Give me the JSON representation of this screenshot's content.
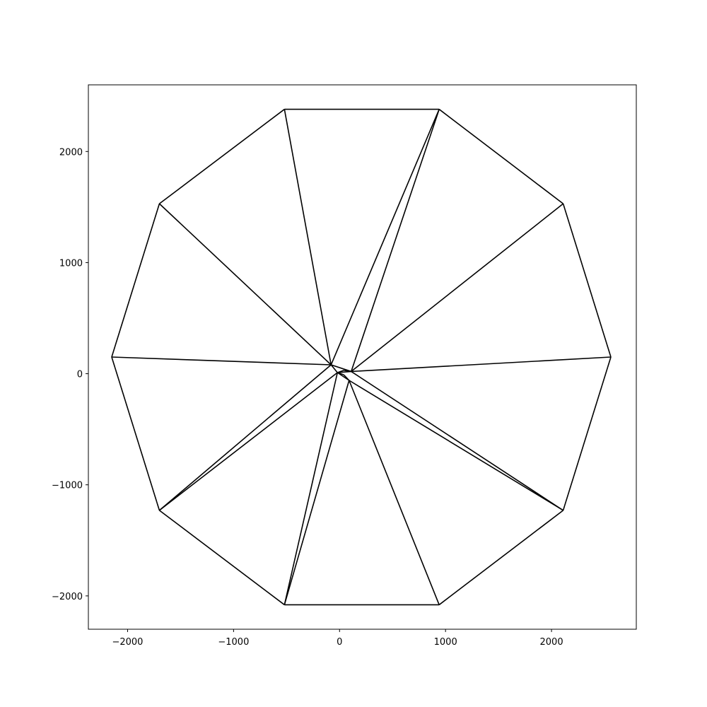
{
  "chart_data": {
    "type": "line",
    "title": "",
    "xlabel": "",
    "ylabel": "",
    "xlim": [
      -2370,
      2800
    ],
    "ylim": [
      -2300,
      2600
    ],
    "xticks": [
      {
        "value": -2000,
        "label": "−2000"
      },
      {
        "value": -1000,
        "label": "−1000"
      },
      {
        "value": 0,
        "label": "0"
      },
      {
        "value": 1000,
        "label": "1000"
      },
      {
        "value": 2000,
        "label": "2000"
      }
    ],
    "yticks": [
      {
        "value": 2000,
        "label": "2000"
      },
      {
        "value": 1000,
        "label": "1000"
      },
      {
        "value": 0,
        "label": "0"
      },
      {
        "value": -1000,
        "label": "−1000"
      },
      {
        "value": -2000,
        "label": "−2000"
      }
    ],
    "grid": false,
    "line_color": "#000000",
    "outer_vertices": [
      [
        -520,
        2380
      ],
      [
        940,
        2380
      ],
      [
        2110,
        1530
      ],
      [
        2560,
        150
      ],
      [
        2110,
        -1230
      ],
      [
        940,
        -2080
      ],
      [
        -520,
        -2080
      ],
      [
        -1700,
        -1230
      ],
      [
        -2150,
        150
      ],
      [
        -1700,
        1530
      ]
    ],
    "segments": [
      [
        [
          -520,
          2380
        ],
        [
          940,
          2380
        ]
      ],
      [
        [
          940,
          2380
        ],
        [
          2110,
          1530
        ]
      ],
      [
        [
          2110,
          1530
        ],
        [
          2560,
          150
        ]
      ],
      [
        [
          2560,
          150
        ],
        [
          2110,
          -1230
        ]
      ],
      [
        [
          2110,
          -1230
        ],
        [
          940,
          -2080
        ]
      ],
      [
        [
          940,
          -2080
        ],
        [
          -520,
          -2080
        ]
      ],
      [
        [
          -520,
          -2080
        ],
        [
          -1700,
          -1230
        ]
      ],
      [
        [
          -1700,
          -1230
        ],
        [
          -2150,
          150
        ]
      ],
      [
        [
          -2150,
          150
        ],
        [
          -1700,
          1530
        ]
      ],
      [
        [
          -1700,
          1530
        ],
        [
          -520,
          2380
        ]
      ],
      [
        [
          -520,
          2380
        ],
        [
          -80,
          80
        ]
      ],
      [
        [
          -1700,
          1530
        ],
        [
          -80,
          80
        ]
      ],
      [
        [
          -2150,
          150
        ],
        [
          -80,
          80
        ]
      ],
      [
        [
          -1700,
          -1230
        ],
        [
          -80,
          80
        ]
      ],
      [
        [
          -1700,
          -1230
        ],
        [
          -20,
          10
        ]
      ],
      [
        [
          -520,
          -2080
        ],
        [
          -20,
          10
        ]
      ],
      [
        [
          -520,
          -2080
        ],
        [
          90,
          -60
        ]
      ],
      [
        [
          940,
          -2080
        ],
        [
          90,
          -60
        ]
      ],
      [
        [
          2110,
          -1230
        ],
        [
          90,
          -60
        ]
      ],
      [
        [
          2110,
          -1230
        ],
        [
          110,
          20
        ]
      ],
      [
        [
          2560,
          150
        ],
        [
          110,
          20
        ]
      ],
      [
        [
          2110,
          1530
        ],
        [
          110,
          20
        ]
      ],
      [
        [
          940,
          2380
        ],
        [
          110,
          20
        ]
      ],
      [
        [
          940,
          2380
        ],
        [
          -80,
          80
        ]
      ],
      [
        [
          -80,
          80
        ],
        [
          -20,
          10
        ]
      ],
      [
        [
          -80,
          80
        ],
        [
          110,
          20
        ]
      ],
      [
        [
          -20,
          10
        ],
        [
          110,
          20
        ]
      ],
      [
        [
          -20,
          10
        ],
        [
          90,
          -60
        ]
      ],
      [
        [
          -20,
          10
        ],
        [
          40,
          30
        ]
      ],
      [
        [
          40,
          30
        ],
        [
          110,
          20
        ]
      ],
      [
        [
          -20,
          10
        ],
        [
          40,
          -10
        ]
      ],
      [
        [
          40,
          -10
        ],
        [
          90,
          -60
        ]
      ]
    ]
  }
}
